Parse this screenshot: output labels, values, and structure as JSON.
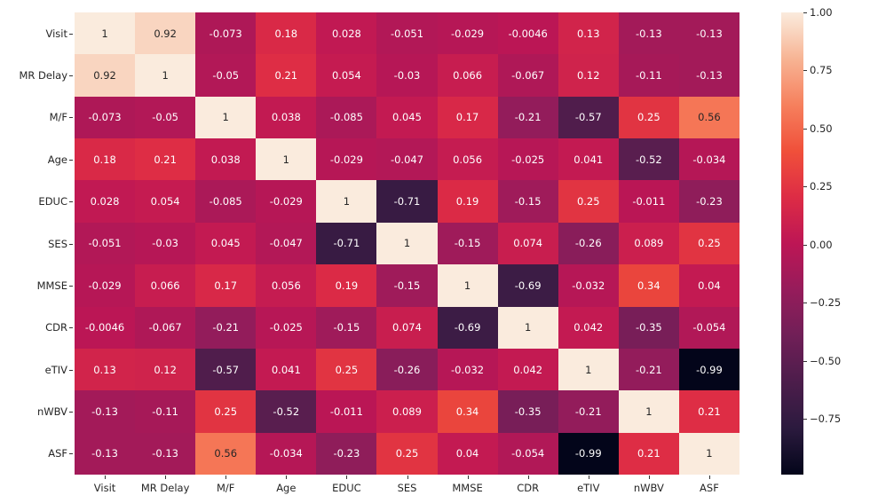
{
  "chart_data": {
    "type": "heatmap",
    "title": "",
    "xlabel": "",
    "ylabel": "",
    "colormap": "rocket",
    "vmin": -0.99,
    "vmax": 1.0,
    "x_labels": [
      "Visit",
      "MR Delay",
      "M/F",
      "Age",
      "EDUC",
      "SES",
      "MMSE",
      "CDR",
      "eTIV",
      "nWBV",
      "ASF"
    ],
    "y_labels": [
      "Visit",
      "MR Delay",
      "M/F",
      "Age",
      "EDUC",
      "SES",
      "MMSE",
      "CDR",
      "eTIV",
      "nWBV",
      "ASF"
    ],
    "values": [
      [
        "1",
        "0.92",
        "-0.073",
        "0.18",
        "0.028",
        "-0.051",
        "-0.029",
        "-0.0046",
        "0.13",
        "-0.13",
        "-0.13"
      ],
      [
        "0.92",
        "1",
        "-0.05",
        "0.21",
        "0.054",
        "-0.03",
        "0.066",
        "-0.067",
        "0.12",
        "-0.11",
        "-0.13"
      ],
      [
        "-0.073",
        "-0.05",
        "1",
        "0.038",
        "-0.085",
        "0.045",
        "0.17",
        "-0.21",
        "-0.57",
        "0.25",
        "0.56"
      ],
      [
        "0.18",
        "0.21",
        "0.038",
        "1",
        "-0.029",
        "-0.047",
        "0.056",
        "-0.025",
        "0.041",
        "-0.52",
        "-0.034"
      ],
      [
        "0.028",
        "0.054",
        "-0.085",
        "-0.029",
        "1",
        "-0.71",
        "0.19",
        "-0.15",
        "0.25",
        "-0.011",
        "-0.23"
      ],
      [
        "-0.051",
        "-0.03",
        "0.045",
        "-0.047",
        "-0.71",
        "1",
        "-0.15",
        "0.074",
        "-0.26",
        "0.089",
        "0.25"
      ],
      [
        "-0.029",
        "0.066",
        "0.17",
        "0.056",
        "0.19",
        "-0.15",
        "1",
        "-0.69",
        "-0.032",
        "0.34",
        "0.04"
      ],
      [
        "-0.0046",
        "-0.067",
        "-0.21",
        "-0.025",
        "-0.15",
        "0.074",
        "-0.69",
        "1",
        "0.042",
        "-0.35",
        "-0.054"
      ],
      [
        "0.13",
        "0.12",
        "-0.57",
        "0.041",
        "0.25",
        "-0.26",
        "-0.032",
        "0.042",
        "1",
        "-0.21",
        "-0.99"
      ],
      [
        "-0.13",
        "-0.11",
        "0.25",
        "-0.52",
        "-0.011",
        "0.089",
        "0.34",
        "-0.35",
        "-0.21",
        "1",
        "0.21"
      ],
      [
        "-0.13",
        "-0.13",
        "0.56",
        "-0.034",
        "-0.23",
        "0.25",
        "0.04",
        "-0.054",
        "-0.99",
        "0.21",
        "1"
      ]
    ],
    "colorbar": {
      "ticks": [
        "1.00",
        "0.75",
        "0.50",
        "0.25",
        "0.00",
        "−0.25",
        "−0.50",
        "−0.75"
      ],
      "tick_values": [
        1.0,
        0.75,
        0.5,
        0.25,
        0.0,
        -0.25,
        -0.5,
        -0.75
      ]
    },
    "colormap_stops": [
      "#03051a",
      "#2b1a3e",
      "#4c1d4b",
      "#701f57",
      "#961c5b",
      "#bd1655",
      "#dd2c45",
      "#f0503a",
      "#f6805d",
      "#f7b494",
      "#faebdd"
    ],
    "text_colors": {
      "light": "#ffffff",
      "dark": "#262626"
    }
  }
}
